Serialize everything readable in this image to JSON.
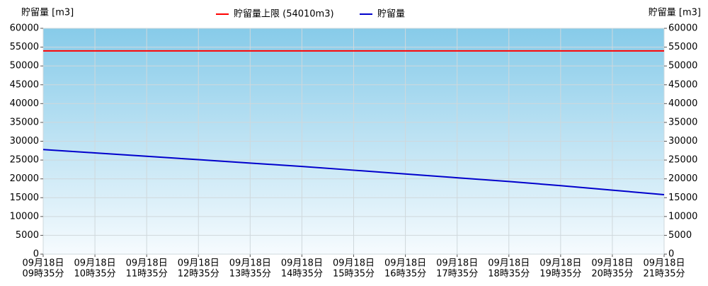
{
  "chart_data": {
    "type": "line",
    "ylabel": "貯留量 [m3]",
    "y2label": "貯留量 [m3]",
    "categories": [
      [
        "09月18日",
        "09時35分"
      ],
      [
        "09月18日",
        "10時35分"
      ],
      [
        "09月18日",
        "11時35分"
      ],
      [
        "09月18日",
        "12時35分"
      ],
      [
        "09月18日",
        "13時35分"
      ],
      [
        "09月18日",
        "14時35分"
      ],
      [
        "09月18日",
        "15時35分"
      ],
      [
        "09月18日",
        "16時35分"
      ],
      [
        "09月18日",
        "17時35分"
      ],
      [
        "09月18日",
        "18時35分"
      ],
      [
        "09月18日",
        "19時35分"
      ],
      [
        "09月18日",
        "20時35分"
      ],
      [
        "09月18日",
        "21時35分"
      ]
    ],
    "series": [
      {
        "name": "貯留量上限 (54010m3)",
        "color": "#ff0000",
        "values": [
          54010,
          54010,
          54010,
          54010,
          54010,
          54010,
          54010,
          54010,
          54010,
          54010,
          54010,
          54010,
          54010
        ]
      },
      {
        "name": "貯留量",
        "color": "#0000cc",
        "values": [
          27800,
          26900,
          26000,
          25100,
          24200,
          23300,
          22300,
          21300,
          20300,
          19300,
          18200,
          17000,
          15800
        ]
      }
    ],
    "ylim": [
      0,
      60000
    ],
    "yticks": [
      0,
      5000,
      10000,
      15000,
      20000,
      25000,
      30000,
      35000,
      40000,
      45000,
      50000,
      55000,
      60000
    ],
    "grid": true
  }
}
